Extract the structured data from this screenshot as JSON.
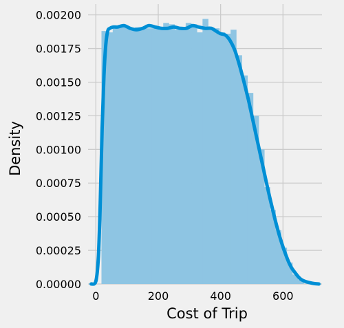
{
  "chart_data": {
    "type": "histogram",
    "title": "",
    "xlabel": "Cost of Trip",
    "ylabel": "Density",
    "xlim": [
      -25,
      725
    ],
    "ylim": [
      0,
      0.00208
    ],
    "x_ticks": [
      0,
      200,
      400,
      600
    ],
    "x_tick_labels": [
      "0",
      "200",
      "400",
      "600"
    ],
    "y_ticks": [
      0,
      0.00025,
      0.0005,
      0.00075,
      0.001,
      0.00125,
      0.0015,
      0.00175,
      0.002
    ],
    "y_tick_labels": [
      "0.00000",
      "0.00025",
      "0.00050",
      "0.00075",
      "0.00100",
      "0.00125",
      "0.00150",
      "0.00175",
      "0.00200"
    ],
    "grid": true,
    "colors": {
      "background": "#f0f0f0",
      "grid": "#cbcbcb",
      "bars": "#8ec5e3",
      "kde_line": "#008fd5"
    },
    "histogram": {
      "bins": [
        {
          "x0": 18,
          "x1": 36,
          "density": 0.00188
        },
        {
          "x0": 36,
          "x1": 54,
          "density": 0.00187
        },
        {
          "x0": 54,
          "x1": 72,
          "density": 0.00191
        },
        {
          "x0": 72,
          "x1": 90,
          "density": 0.00191
        },
        {
          "x0": 90,
          "x1": 108,
          "density": 0.00191
        },
        {
          "x0": 108,
          "x1": 126,
          "density": 0.0019
        },
        {
          "x0": 126,
          "x1": 144,
          "density": 0.00191
        },
        {
          "x0": 144,
          "x1": 162,
          "density": 0.00191
        },
        {
          "x0": 162,
          "x1": 180,
          "density": 0.0019
        },
        {
          "x0": 180,
          "x1": 198,
          "density": 0.0019
        },
        {
          "x0": 198,
          "x1": 216,
          "density": 0.00189
        },
        {
          "x0": 216,
          "x1": 234,
          "density": 0.00194
        },
        {
          "x0": 234,
          "x1": 252,
          "density": 0.00193
        },
        {
          "x0": 252,
          "x1": 270,
          "density": 0.00189
        },
        {
          "x0": 270,
          "x1": 288,
          "density": 0.0019
        },
        {
          "x0": 288,
          "x1": 306,
          "density": 0.00194
        },
        {
          "x0": 306,
          "x1": 324,
          "density": 0.00193
        },
        {
          "x0": 324,
          "x1": 342,
          "density": 0.00187
        },
        {
          "x0": 342,
          "x1": 360,
          "density": 0.00197
        },
        {
          "x0": 360,
          "x1": 378,
          "density": 0.0019
        },
        {
          "x0": 378,
          "x1": 396,
          "density": 0.0019
        },
        {
          "x0": 396,
          "x1": 414,
          "density": 0.00187
        },
        {
          "x0": 414,
          "x1": 432,
          "density": 0.00186
        },
        {
          "x0": 432,
          "x1": 450,
          "density": 0.00189
        },
        {
          "x0": 450,
          "x1": 468,
          "density": 0.0017
        },
        {
          "x0": 468,
          "x1": 486,
          "density": 0.00155
        },
        {
          "x0": 486,
          "x1": 504,
          "density": 0.00142
        },
        {
          "x0": 504,
          "x1": 522,
          "density": 0.00125
        },
        {
          "x0": 522,
          "x1": 540,
          "density": 0.001
        },
        {
          "x0": 540,
          "x1": 558,
          "density": 0.00072
        },
        {
          "x0": 558,
          "x1": 576,
          "density": 0.00055
        },
        {
          "x0": 576,
          "x1": 594,
          "density": 0.0004
        },
        {
          "x0": 594,
          "x1": 612,
          "density": 0.00027
        },
        {
          "x0": 612,
          "x1": 630,
          "density": 0.00016
        },
        {
          "x0": 630,
          "x1": 648,
          "density": 7e-05
        },
        {
          "x0": 648,
          "x1": 666,
          "density": 3e-05
        }
      ]
    },
    "kde": {
      "x": [
        -15,
        0,
        8,
        14,
        20,
        26,
        32,
        38,
        45,
        55,
        70,
        90,
        110,
        130,
        150,
        170,
        190,
        210,
        230,
        250,
        270,
        290,
        310,
        330,
        350,
        370,
        385,
        400,
        415,
        430,
        445,
        460,
        475,
        490,
        505,
        520,
        535,
        550,
        565,
        580,
        595,
        610,
        625,
        640,
        655,
        670,
        685,
        700,
        715
      ],
      "y": [
        0,
        2e-05,
        0.0002,
        0.0006,
        0.00115,
        0.00155,
        0.00178,
        0.00188,
        0.0019,
        0.00191,
        0.00191,
        0.00192,
        0.0019,
        0.00189,
        0.0019,
        0.00192,
        0.00191,
        0.0019,
        0.0019,
        0.00191,
        0.0019,
        0.0019,
        0.00192,
        0.00191,
        0.0019,
        0.0019,
        0.00188,
        0.00186,
        0.00185,
        0.00181,
        0.00174,
        0.00163,
        0.0015,
        0.00136,
        0.0012,
        0.00104,
        0.00088,
        0.00072,
        0.00057,
        0.00043,
        0.00031,
        0.00021,
        0.00013,
        8e-05,
        4e-05,
        2e-05,
        1e-05,
        3e-06,
        0
      ]
    }
  }
}
